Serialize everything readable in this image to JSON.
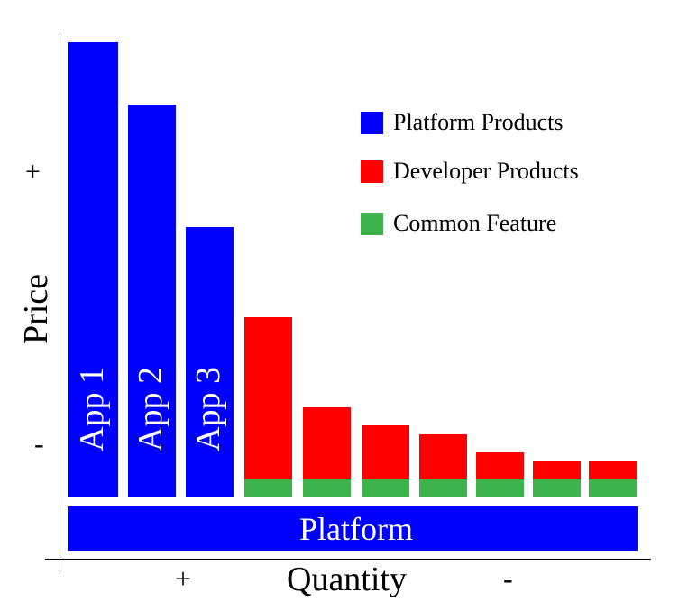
{
  "colors": {
    "platform": "#0000ff",
    "developer": "#ff0000",
    "common": "#3cb44b",
    "axis": "#000000",
    "background": "#ffffff"
  },
  "platform_bar": {
    "label": "Platform"
  },
  "apps": [
    {
      "label": "App 1"
    },
    {
      "label": "App 2"
    },
    {
      "label": "App 3"
    }
  ],
  "developer_bars": [
    {
      "id": "dev-1"
    },
    {
      "id": "dev-2"
    },
    {
      "id": "dev-3"
    },
    {
      "id": "dev-4"
    },
    {
      "id": "dev-5"
    },
    {
      "id": "dev-6"
    },
    {
      "id": "dev-7"
    }
  ],
  "legend": [
    {
      "label": "Platform Products",
      "color": "#0000ff"
    },
    {
      "label": "Developer Products",
      "color": "#ff0000"
    },
    {
      "label": "Common Feature",
      "color": "#3cb44b"
    }
  ],
  "axes": {
    "y_label": "Price",
    "y_plus": "+",
    "y_minus": "-",
    "x_label": "Quantity",
    "x_plus": "+",
    "x_minus": "-"
  }
}
